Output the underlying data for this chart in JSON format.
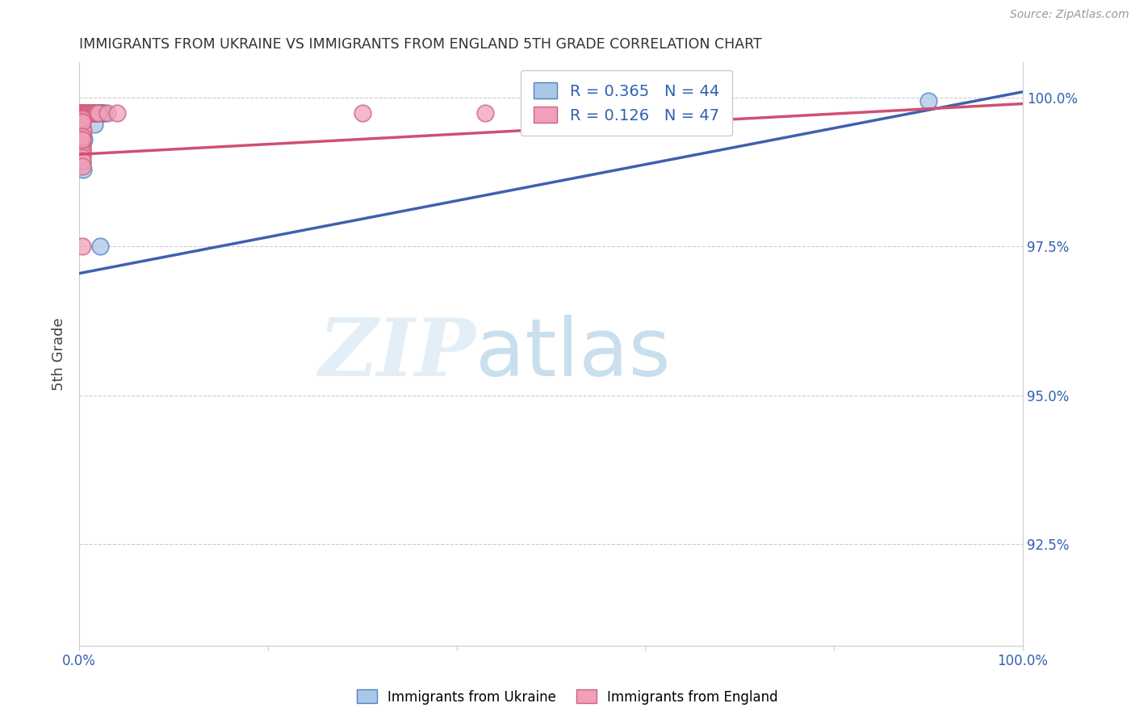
{
  "title": "IMMIGRANTS FROM UKRAINE VS IMMIGRANTS FROM ENGLAND 5TH GRADE CORRELATION CHART",
  "source": "Source: ZipAtlas.com",
  "ylabel": "5th Grade",
  "ytick_labels": [
    "100.0%",
    "97.5%",
    "95.0%",
    "92.5%"
  ],
  "ytick_values": [
    1.0,
    0.975,
    0.95,
    0.925
  ],
  "xlim": [
    0.0,
    1.0
  ],
  "ylim": [
    0.908,
    1.006
  ],
  "legend_r1": "R = 0.365",
  "legend_n1": "N = 44",
  "legend_r2": "R = 0.126",
  "legend_n2": "N = 47",
  "color_ukraine": "#a8c8e8",
  "color_england": "#f0a0b8",
  "color_ukraine_edge": "#5580c0",
  "color_england_edge": "#d06080",
  "color_ukraine_line": "#4060b0",
  "color_england_line": "#d05070",
  "watermark_zip": "ZIP",
  "watermark_atlas": "atlas",
  "blue_line_x": [
    0.0,
    1.0
  ],
  "blue_line_y": [
    0.9705,
    1.001
  ],
  "pink_line_x": [
    0.0,
    1.0
  ],
  "pink_line_y": [
    0.9905,
    0.999
  ],
  "ukraine_x": [
    0.001,
    0.002,
    0.003,
    0.003,
    0.004,
    0.004,
    0.005,
    0.005,
    0.006,
    0.006,
    0.007,
    0.007,
    0.008,
    0.008,
    0.009,
    0.01,
    0.011,
    0.012,
    0.013,
    0.014,
    0.015,
    0.016,
    0.017,
    0.018,
    0.019,
    0.02,
    0.021,
    0.022,
    0.023,
    0.024,
    0.025,
    0.026,
    0.002,
    0.003,
    0.004,
    0.005,
    0.55,
    0.9,
    0.002,
    0.003,
    0.004,
    0.003,
    0.016,
    0.022
  ],
  "ukraine_y": [
    0.9975,
    0.9975,
    0.9975,
    0.9975,
    0.9975,
    0.9975,
    0.9975,
    0.9975,
    0.9975,
    0.9975,
    0.9975,
    0.9975,
    0.9975,
    0.9975,
    0.9975,
    0.9975,
    0.9975,
    0.9975,
    0.9975,
    0.9975,
    0.9975,
    0.9975,
    0.9975,
    0.9975,
    0.9975,
    0.9975,
    0.9975,
    0.9975,
    0.9975,
    0.9975,
    0.9975,
    0.9975,
    0.9945,
    0.994,
    0.9935,
    0.993,
    0.9975,
    0.9995,
    0.99,
    0.989,
    0.988,
    0.996,
    0.9955,
    0.975
  ],
  "england_x": [
    0.001,
    0.002,
    0.003,
    0.003,
    0.004,
    0.004,
    0.005,
    0.005,
    0.006,
    0.006,
    0.007,
    0.007,
    0.008,
    0.008,
    0.009,
    0.01,
    0.011,
    0.012,
    0.013,
    0.014,
    0.015,
    0.016,
    0.017,
    0.018,
    0.019,
    0.02,
    0.03,
    0.04,
    0.002,
    0.003,
    0.004,
    0.003,
    0.003,
    0.3,
    0.43,
    0.55,
    0.002,
    0.003,
    0.003,
    0.003,
    0.003,
    0.003,
    0.003,
    0.003,
    0.003,
    0.003,
    0.003
  ],
  "england_y": [
    0.9975,
    0.9975,
    0.9975,
    0.9975,
    0.9975,
    0.9975,
    0.9975,
    0.9975,
    0.9975,
    0.9975,
    0.9975,
    0.9975,
    0.9975,
    0.9975,
    0.9975,
    0.9975,
    0.9975,
    0.9975,
    0.9975,
    0.9975,
    0.9975,
    0.9975,
    0.9975,
    0.9975,
    0.9975,
    0.9975,
    0.9975,
    0.9975,
    0.9955,
    0.995,
    0.9945,
    0.9965,
    0.996,
    0.9975,
    0.9975,
    0.9975,
    0.9925,
    0.992,
    0.9915,
    0.991,
    0.9905,
    0.99,
    0.9895,
    0.9885,
    0.9935,
    0.993,
    0.975
  ]
}
